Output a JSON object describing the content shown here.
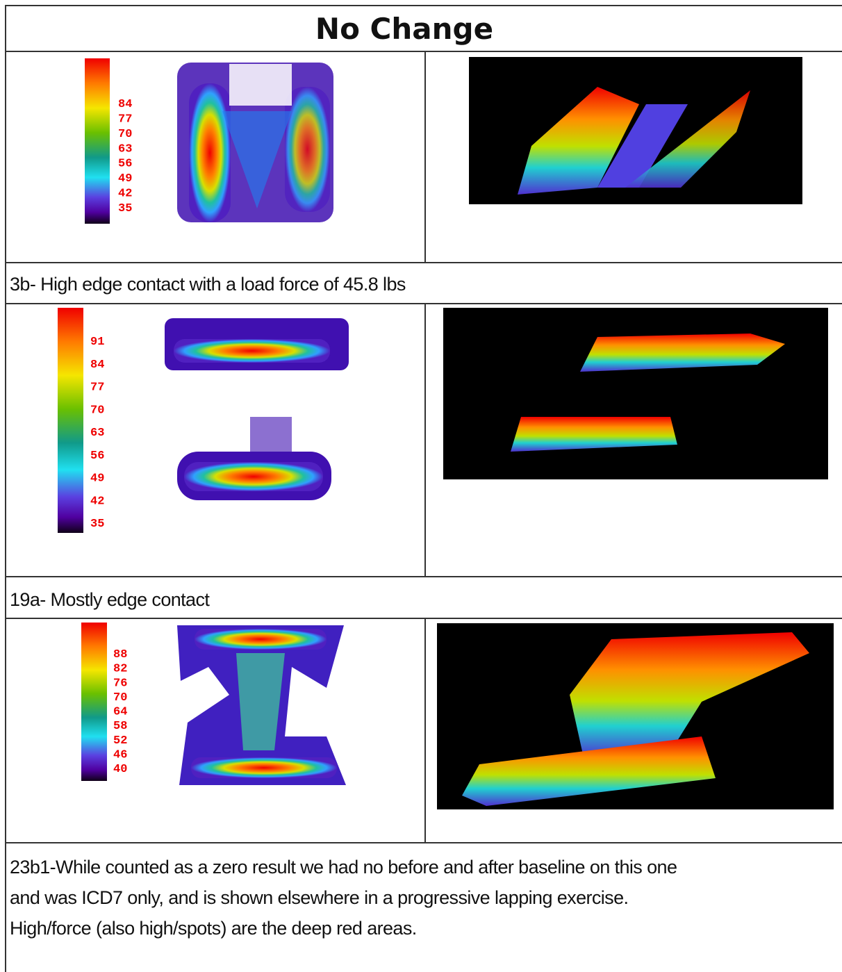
{
  "title": "No Change",
  "rows": [
    {
      "scale": [
        "84",
        "77",
        "70",
        "63",
        "56",
        "49",
        "42",
        "35"
      ],
      "caption": [
        "3b- High edge contact with a load force of 45.8 lbs"
      ]
    },
    {
      "scale": [
        "91",
        "84",
        "77",
        "70",
        "63",
        "56",
        "49",
        "42",
        "35"
      ],
      "caption": [
        "19a- Mostly edge contact"
      ]
    },
    {
      "scale": [
        "88",
        "82",
        "76",
        "70",
        "64",
        "58",
        "52",
        "46",
        "40"
      ],
      "caption": [
        "23b1-While counted as a zero result we had no before and after baseline on this one",
        "and was ICD7 only, and is shown elsewhere in a progressive lapping exercise.",
        "High/force (also high/spots) are the deep red areas."
      ]
    }
  ]
}
